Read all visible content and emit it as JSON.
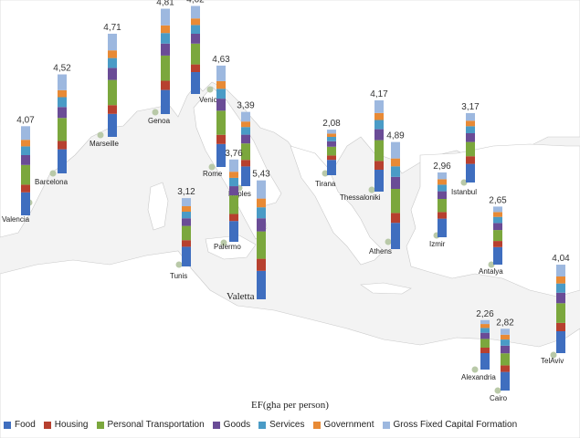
{
  "chart_data": {
    "type": "bar",
    "xlabel": "EF(gha per person)",
    "components": [
      "Food",
      "Housing",
      "Personal Transportation",
      "Goods",
      "Services",
      "Government",
      "Gross Fixed Capital Formation"
    ],
    "colors": [
      "#3f6ebf",
      "#b7402f",
      "#7ba73d",
      "#6a4c96",
      "#4a9bc6",
      "#e88a35",
      "#9db8df"
    ],
    "cities": [
      {
        "name": "Valencia",
        "total": "4,07",
        "value": 4.07,
        "parts": [
          1.05,
          0.35,
          0.9,
          0.45,
          0.4,
          0.3,
          0.62
        ]
      },
      {
        "name": "Barcelona",
        "total": "4,52",
        "value": 4.52,
        "parts": [
          1.1,
          0.38,
          1.05,
          0.5,
          0.45,
          0.32,
          0.72
        ]
      },
      {
        "name": "Marseille",
        "total": "4,71",
        "value": 4.71,
        "parts": [
          1.05,
          0.4,
          1.15,
          0.55,
          0.45,
          0.35,
          0.76
        ]
      },
      {
        "name": "Genoa",
        "total": "4,81",
        "value": 4.81,
        "parts": [
          1.1,
          0.42,
          1.15,
          0.55,
          0.48,
          0.35,
          0.76
        ]
      },
      {
        "name": "Venice",
        "total": "4,02",
        "value": 4.02,
        "parts": [
          1.0,
          0.35,
          0.95,
          0.45,
          0.4,
          0.3,
          0.57
        ]
      },
      {
        "name": "Rome",
        "total": "4,63",
        "value": 4.63,
        "parts": [
          1.05,
          0.42,
          1.1,
          0.55,
          0.45,
          0.35,
          0.71
        ]
      },
      {
        "name": "Naples",
        "total": "3,39",
        "value": 3.39,
        "parts": [
          0.9,
          0.3,
          0.75,
          0.4,
          0.35,
          0.25,
          0.44
        ]
      },
      {
        "name": "Palermo",
        "total": "3,76",
        "value": 3.76,
        "parts": [
          0.95,
          0.32,
          0.85,
          0.42,
          0.38,
          0.28,
          0.56
        ]
      },
      {
        "name": "Valetta",
        "total": "5,43",
        "value": 5.43,
        "parts": [
          1.3,
          0.55,
          1.25,
          0.6,
          0.5,
          0.4,
          0.83
        ]
      },
      {
        "name": "Tunis",
        "total": "3,12",
        "value": 3.12,
        "parts": [
          0.9,
          0.3,
          0.65,
          0.35,
          0.3,
          0.25,
          0.37
        ]
      },
      {
        "name": "Tirana",
        "total": "2,08",
        "value": 2.08,
        "parts": [
          0.7,
          0.2,
          0.4,
          0.25,
          0.2,
          0.15,
          0.18
        ]
      },
      {
        "name": "Thessaloniki",
        "total": "4,17",
        "value": 4.17,
        "parts": [
          1.0,
          0.4,
          0.95,
          0.5,
          0.42,
          0.32,
          0.58
        ]
      },
      {
        "name": "Athens",
        "total": "4,89",
        "value": 4.89,
        "parts": [
          1.2,
          0.45,
          1.1,
          0.55,
          0.48,
          0.36,
          0.75
        ]
      },
      {
        "name": "Istanbul",
        "total": "3,17",
        "value": 3.17,
        "parts": [
          0.85,
          0.35,
          0.65,
          0.4,
          0.32,
          0.25,
          0.35
        ]
      },
      {
        "name": "Izmir",
        "total": "2,96",
        "value": 2.96,
        "parts": [
          0.85,
          0.3,
          0.6,
          0.35,
          0.3,
          0.25,
          0.31
        ]
      },
      {
        "name": "Antalya",
        "total": "2,65",
        "value": 2.65,
        "parts": [
          0.8,
          0.28,
          0.5,
          0.32,
          0.28,
          0.22,
          0.25
        ]
      },
      {
        "name": "Alexandria",
        "total": "2,26",
        "value": 2.26,
        "parts": [
          0.75,
          0.25,
          0.4,
          0.28,
          0.22,
          0.18,
          0.18
        ]
      },
      {
        "name": "Cairo",
        "total": "2,82",
        "value": 2.82,
        "parts": [
          0.85,
          0.3,
          0.55,
          0.35,
          0.28,
          0.22,
          0.27
        ]
      },
      {
        "name": "TelAviv",
        "total": "4,04",
        "value": 4.04,
        "parts": [
          1.0,
          0.38,
          0.9,
          0.48,
          0.42,
          0.32,
          0.54
        ]
      }
    ]
  }
}
